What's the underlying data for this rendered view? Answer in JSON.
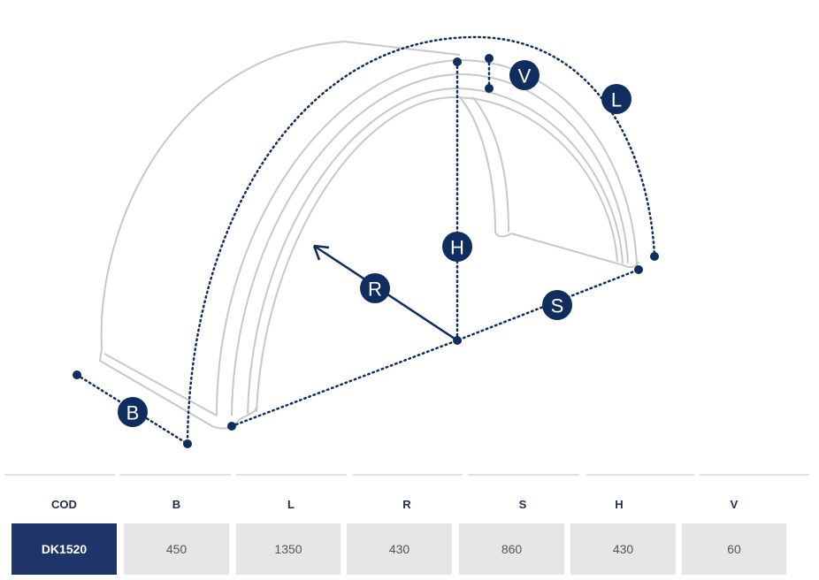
{
  "diagram": {
    "labels": {
      "V": "V",
      "L": "L",
      "H": "H",
      "R": "R",
      "S": "S",
      "B": "B"
    },
    "accent_color": "#0f2d5e",
    "outline_color": "#c8c8c8"
  },
  "table": {
    "headers": [
      "COD",
      "B",
      "L",
      "R",
      "S",
      "H",
      "V"
    ],
    "row": [
      "DK1520",
      "450",
      "1350",
      "430",
      "860",
      "430",
      "60"
    ]
  }
}
